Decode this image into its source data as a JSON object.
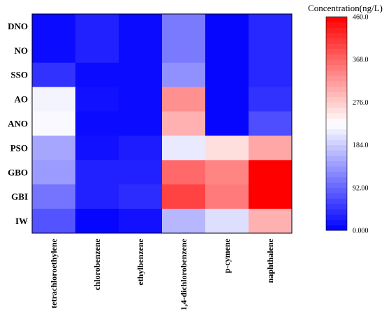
{
  "chart_data": {
    "type": "heatmap",
    "rows": [
      "DNO",
      "NO",
      "SSO",
      "AO",
      "ANO",
      "PSO",
      "GBO",
      "GBI",
      "IW"
    ],
    "columns": [
      "tetrachloroethylene",
      "chlorobenzene",
      "ethylbenzene",
      "1,4-dichlorobenzene",
      "p-cymene",
      "naphthalene"
    ],
    "values": [
      [
        10,
        30,
        10,
        110,
        5,
        35
      ],
      [
        10,
        30,
        10,
        110,
        5,
        35
      ],
      [
        45,
        10,
        10,
        130,
        5,
        35
      ],
      [
        220,
        15,
        10,
        330,
        5,
        45
      ],
      [
        225,
        10,
        10,
        300,
        5,
        70
      ],
      [
        150,
        15,
        25,
        210,
        260,
        310
      ],
      [
        140,
        30,
        30,
        365,
        340,
        460
      ],
      [
        105,
        30,
        40,
        400,
        350,
        460
      ],
      [
        75,
        5,
        15,
        165,
        200,
        300
      ]
    ],
    "colorbar": {
      "title": "Concentration(ng/L)",
      "min": 0,
      "max": 460,
      "ticks": [
        "0.000",
        "92.00",
        "184.0",
        "276.0",
        "368.0",
        "460.0"
      ],
      "colors": {
        "low": "#0000ff",
        "mid": "#ffffff",
        "high": "#ff0000"
      }
    },
    "grid": false
  }
}
